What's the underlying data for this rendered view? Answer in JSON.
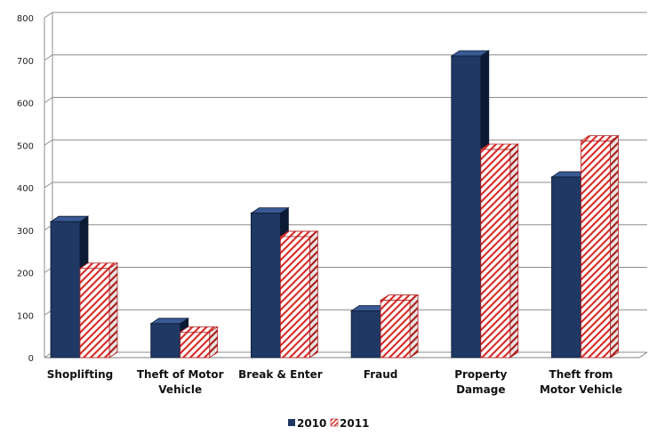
{
  "chart_data": {
    "type": "bar",
    "categories": [
      [
        "Shoplifting"
      ],
      [
        "Theft of Motor",
        "Vehicle"
      ],
      [
        "Break & Enter"
      ],
      [
        "Fraud"
      ],
      [
        "Property",
        "Damage"
      ],
      [
        "Theft from",
        "Motor Vehicle"
      ]
    ],
    "series": [
      {
        "name": "2010",
        "values": [
          320,
          80,
          340,
          110,
          710,
          425
        ],
        "color": "#1f3864",
        "pattern": "solid"
      },
      {
        "name": "2011",
        "values": [
          210,
          60,
          285,
          135,
          490,
          510
        ],
        "color": "#c00000",
        "pattern": "diagonal-stripes"
      }
    ],
    "ylim": [
      0,
      800
    ],
    "yticks": [
      "0",
      "100",
      "200",
      "300",
      "400",
      "500",
      "600",
      "700",
      "800"
    ],
    "grid": true,
    "legend_position": "bottom",
    "style": "3d-clustered"
  }
}
